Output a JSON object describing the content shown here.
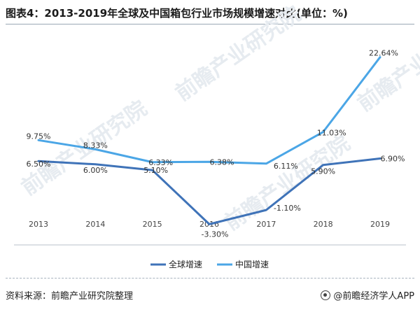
{
  "title": "图表4：2013-2019年全球及中国箱包行业市场规模增速对比(单位：%)",
  "footer": {
    "source": "资料来源：前瞻产业研究院整理",
    "brand": "@前瞻经济学人APP"
  },
  "watermark_text": "前瞻产业研究院",
  "colors": {
    "global": "#3f73b8",
    "china": "#4ba6e6",
    "axis": "#b9c2cb",
    "text": "#333333"
  },
  "chart_data": {
    "type": "line",
    "x": [
      "2013",
      "2014",
      "2015",
      "2016",
      "2017",
      "2018",
      "2019"
    ],
    "series": [
      {
        "name": "全球增速",
        "values": [
          6.5,
          6.0,
          5.1,
          -3.3,
          -1.1,
          5.9,
          6.9
        ],
        "labels": [
          "6.50%",
          "6.00%",
          "5.10%",
          "-3.30%",
          "-1.10%",
          "5.90%",
          "6.90%"
        ]
      },
      {
        "name": "中国增速",
        "values": [
          9.75,
          8.33,
          6.33,
          6.38,
          6.11,
          11.03,
          22.64
        ],
        "labels": [
          "9.75%",
          "8.33%",
          "6.33%",
          "6.38%",
          "6.11%",
          "11.03%",
          "22.64%"
        ]
      }
    ],
    "xlabel": "",
    "ylabel": "",
    "ylim": [
      -5,
      25
    ],
    "grid": false,
    "legend": "bottom"
  }
}
